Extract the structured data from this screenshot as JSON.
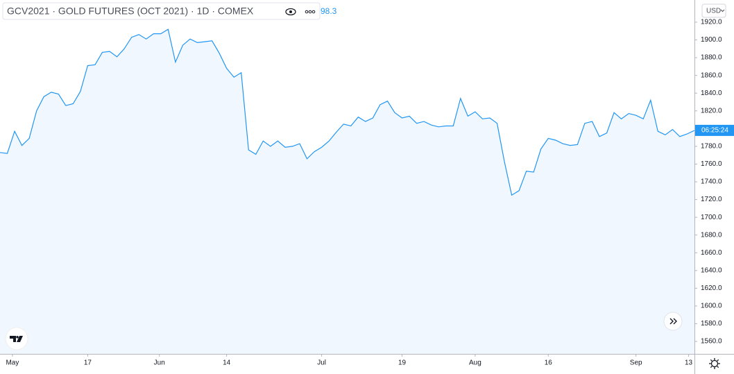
{
  "chart_data": {
    "type": "area",
    "title": "GCV2021 · GOLD FUTURES (OCT 2021) · 1D · COMEX",
    "legend_value_fragment": "98.3",
    "currency": "USD",
    "countdown": "06:25:24",
    "series": [
      {
        "name": "GCV2021",
        "color": "#2196f3",
        "values": [
          1773,
          1772,
          1797,
          1781,
          1789,
          1820,
          1836,
          1841,
          1839,
          1826,
          1828,
          1842,
          1871,
          1872,
          1886,
          1887,
          1881,
          1890,
          1903,
          1906,
          1901,
          1907,
          1907,
          1912,
          1875,
          1894,
          1901,
          1897,
          1898,
          1899,
          1885,
          1868,
          1858,
          1863,
          1776,
          1771,
          1786,
          1780,
          1786,
          1779,
          1780,
          1783,
          1766,
          1774,
          1779,
          1786,
          1796,
          1805,
          1803,
          1813,
          1808,
          1812,
          1827,
          1831,
          1818,
          1812,
          1814,
          1806,
          1808,
          1804,
          1802,
          1803,
          1803,
          1834,
          1814,
          1819,
          1811,
          1812,
          1806,
          1763,
          1725,
          1730,
          1752,
          1751,
          1777,
          1789,
          1787,
          1783,
          1781,
          1782,
          1806,
          1808,
          1791,
          1795,
          1818,
          1811,
          1817,
          1815,
          1811,
          1832,
          1797,
          1793,
          1799,
          1791,
          1794,
          1798
        ]
      }
    ],
    "xlim": [
      0,
      95
    ],
    "xticks": [
      {
        "value": 1.7,
        "label": "May"
      },
      {
        "value": 12,
        "label": "17"
      },
      {
        "value": 21.8,
        "label": "Jun"
      },
      {
        "value": 31,
        "label": "14"
      },
      {
        "value": 44,
        "label": "Jul"
      },
      {
        "value": 55,
        "label": "19"
      },
      {
        "value": 65,
        "label": "Aug"
      },
      {
        "value": 75,
        "label": "16"
      },
      {
        "value": 87,
        "label": "Sep"
      },
      {
        "value": 94.2,
        "label": "13"
      }
    ],
    "ylim": [
      1546,
      1945
    ],
    "yticks": [
      {
        "value": 1560,
        "label": "1560.0"
      },
      {
        "value": 1580,
        "label": "1580.0"
      },
      {
        "value": 1600,
        "label": "1600.0"
      },
      {
        "value": 1620,
        "label": "1620.0"
      },
      {
        "value": 1640,
        "label": "1640.0"
      },
      {
        "value": 1660,
        "label": "1660.0"
      },
      {
        "value": 1680,
        "label": "1680.0"
      },
      {
        "value": 1700,
        "label": "1700.0"
      },
      {
        "value": 1720,
        "label": "1720.0"
      },
      {
        "value": 1740,
        "label": "1740.0"
      },
      {
        "value": 1760,
        "label": "1760.0"
      },
      {
        "value": 1780,
        "label": "1780.0"
      },
      {
        "value": 1800,
        "label": "1800.0"
      },
      {
        "value": 1820,
        "label": "1820.0"
      },
      {
        "value": 1840,
        "label": "1840.0"
      },
      {
        "value": 1860,
        "label": "1860.0"
      },
      {
        "value": 1880,
        "label": "1880.0"
      },
      {
        "value": 1900,
        "label": "1900.0"
      },
      {
        "value": 1920,
        "label": "1920.0"
      }
    ],
    "fill_color": "#f1f7fe"
  }
}
